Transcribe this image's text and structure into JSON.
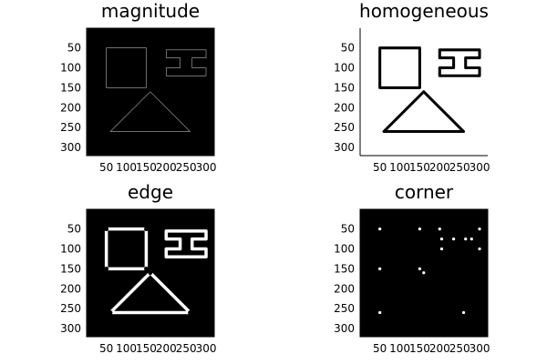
{
  "chart_data": [
    {
      "type": "heatmap",
      "title": "magnitude",
      "xticks": [
        50,
        100,
        150,
        200,
        250,
        300
      ],
      "yticks": [
        50,
        100,
        150,
        200,
        250,
        300
      ],
      "xlim": [
        1,
        320
      ],
      "ylim": [
        1,
        320
      ],
      "y_direction": "down",
      "background": "#000000",
      "foreground": "#b4b4b4",
      "framed": true,
      "stroke_scale": 1,
      "corner_dots": false
    },
    {
      "type": "heatmap",
      "title": "homogeneous",
      "xticks": [
        50,
        100,
        150,
        200,
        250,
        300
      ],
      "yticks": [
        50,
        100,
        150,
        200,
        250,
        300
      ],
      "xlim": [
        1,
        320
      ],
      "ylim": [
        1,
        320
      ],
      "y_direction": "down",
      "background": "#ffffff",
      "foreground": "#000000",
      "framed": false,
      "stroke_scale": 7,
      "corner_dots": false
    },
    {
      "type": "heatmap",
      "title": "edge",
      "xticks": [
        50,
        100,
        150,
        200,
        250,
        300
      ],
      "yticks": [
        50,
        100,
        150,
        200,
        250,
        300
      ],
      "xlim": [
        1,
        320
      ],
      "ylim": [
        1,
        320
      ],
      "y_direction": "down",
      "background": "#000000",
      "foreground": "#ffffff",
      "framed": true,
      "stroke_scale": 8,
      "corner_dots": true
    },
    {
      "type": "heatmap",
      "title": "corner",
      "xticks": [
        50,
        100,
        150,
        200,
        250,
        300
      ],
      "yticks": [
        50,
        100,
        150,
        200,
        250,
        300
      ],
      "xlim": [
        1,
        320
      ],
      "ylim": [
        1,
        320
      ],
      "y_direction": "down",
      "background": "#000000",
      "foreground": "#ffffff",
      "framed": true,
      "stroke_scale": 0,
      "corner_dots": false,
      "points": [
        [
          50,
          50
        ],
        [
          150,
          50
        ],
        [
          200,
          50
        ],
        [
          300,
          50
        ],
        [
          205,
          75
        ],
        [
          235,
          75
        ],
        [
          265,
          75
        ],
        [
          280,
          75
        ],
        [
          205,
          100
        ],
        [
          300,
          100
        ],
        [
          50,
          150
        ],
        [
          150,
          150
        ],
        [
          160,
          160
        ],
        [
          50,
          260
        ],
        [
          260,
          260
        ]
      ]
    }
  ]
}
